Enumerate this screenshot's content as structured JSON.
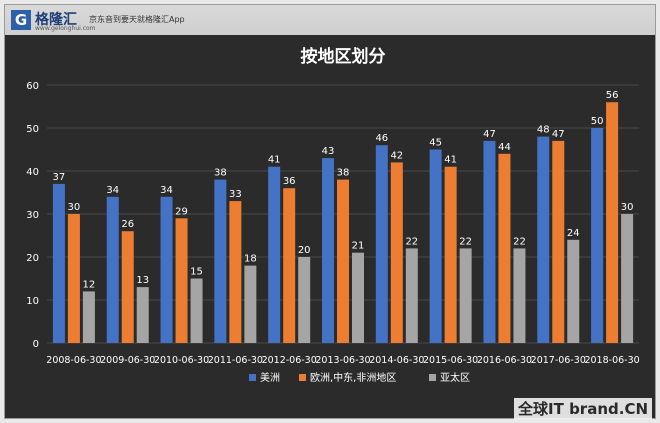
{
  "header": {
    "logo_char": "G",
    "brand": "格隆汇",
    "slogan": "京东音到要天就格隆汇App",
    "url": "www.gelonghui.com"
  },
  "watermark": {
    "text": "全球IT brand.CN"
  },
  "colors": {
    "background": "#2b2b2b",
    "series": [
      "#4472c4",
      "#ed7d31",
      "#a5a5a5"
    ],
    "text": "#ffffff",
    "grid": "#4a4a4a"
  },
  "chart_data": {
    "type": "bar",
    "title": "按地区划分",
    "categories": [
      "2008-06-30",
      "2009-06-30",
      "2010-06-30",
      "2011-06-30",
      "2012-06-30",
      "2013-06-30",
      "2014-06-30",
      "2015-06-30",
      "2016-06-30",
      "2017-06-30",
      "2018-06-30"
    ],
    "series": [
      {
        "name": "美洲",
        "values": [
          37,
          34,
          34,
          38,
          41,
          43,
          46,
          45,
          47,
          48,
          50
        ]
      },
      {
        "name": "欧洲,中东,非洲地区",
        "values": [
          30,
          26,
          29,
          33,
          36,
          38,
          42,
          41,
          44,
          47,
          56
        ]
      },
      {
        "name": "亚太区",
        "values": [
          12,
          13,
          15,
          18,
          20,
          21,
          22,
          22,
          22,
          24,
          30
        ]
      }
    ],
    "ylim": [
      0,
      60
    ],
    "yticks": [
      0,
      10,
      20,
      30,
      40,
      50,
      60
    ],
    "grid": true,
    "legend": "bottom",
    "data_labels": true
  }
}
